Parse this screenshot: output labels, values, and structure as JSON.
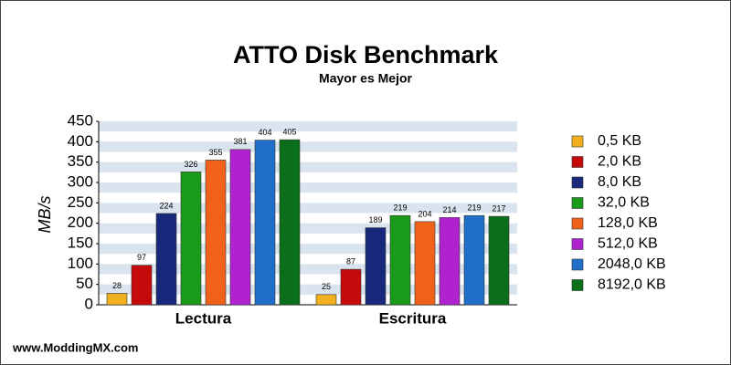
{
  "chart_data": {
    "type": "bar",
    "title": "ATTO Disk Benchmark",
    "subtitle": "Mayor es Mejor",
    "y_label": "MB/s",
    "footer": "www.ModdingMX.com",
    "categories": [
      "Lectura",
      "Escritura"
    ],
    "series": [
      {
        "name": "0,5 KB",
        "color": "#f0b020",
        "values": [
          28,
          25
        ]
      },
      {
        "name": "2,0 KB",
        "color": "#c40a0a",
        "values": [
          97,
          87
        ]
      },
      {
        "name": "8,0 KB",
        "color": "#17287a",
        "values": [
          224,
          189
        ]
      },
      {
        "name": "32,0 KB",
        "color": "#1a9a1a",
        "values": [
          326,
          219
        ]
      },
      {
        "name": "128,0 KB",
        "color": "#f0621a",
        "values": [
          355,
          204
        ]
      },
      {
        "name": "512,0 KB",
        "color": "#b022d0",
        "values": [
          381,
          214
        ]
      },
      {
        "name": "2048,0 KB",
        "color": "#1f6fc8",
        "values": [
          404,
          219
        ]
      },
      {
        "name": "8192,0 KB",
        "color": "#0a6e1a",
        "values": [
          405,
          217
        ]
      }
    ],
    "ylim": [
      0,
      450
    ],
    "yticks": [
      0,
      50,
      100,
      150,
      200,
      250,
      300,
      350,
      400,
      450
    ],
    "grid": true,
    "legend": "right"
  }
}
